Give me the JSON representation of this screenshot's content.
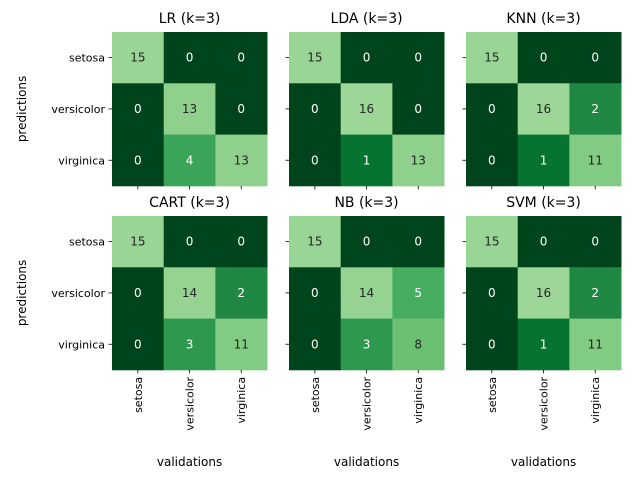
{
  "chart_data": {
    "type": "heatmap",
    "class_labels": [
      "setosa",
      "versicolor",
      "virginica"
    ],
    "xlabel": "validations",
    "ylabel": "predictions",
    "colormap": "Greens",
    "colorscale_range": [
      0,
      2
    ],
    "panels": [
      {
        "title": "LR (k=3)",
        "matrix": [
          [
            15,
            0,
            0
          ],
          [
            0,
            13,
            0
          ],
          [
            0,
            4,
            13
          ]
        ]
      },
      {
        "title": "LDA (k=3)",
        "matrix": [
          [
            15,
            0,
            0
          ],
          [
            0,
            16,
            0
          ],
          [
            0,
            1,
            13
          ]
        ]
      },
      {
        "title": "KNN (k=3)",
        "matrix": [
          [
            15,
            0,
            0
          ],
          [
            0,
            16,
            2
          ],
          [
            0,
            1,
            11
          ]
        ]
      },
      {
        "title": "CART (k=3)",
        "matrix": [
          [
            15,
            0,
            0
          ],
          [
            0,
            14,
            2
          ],
          [
            0,
            3,
            11
          ]
        ]
      },
      {
        "title": "NB (k=3)",
        "matrix": [
          [
            15,
            0,
            0
          ],
          [
            0,
            14,
            5
          ],
          [
            0,
            3,
            8
          ]
        ]
      },
      {
        "title": "SVM (k=3)",
        "matrix": [
          [
            15,
            0,
            0
          ],
          [
            0,
            16,
            2
          ],
          [
            0,
            1,
            11
          ]
        ]
      }
    ]
  }
}
